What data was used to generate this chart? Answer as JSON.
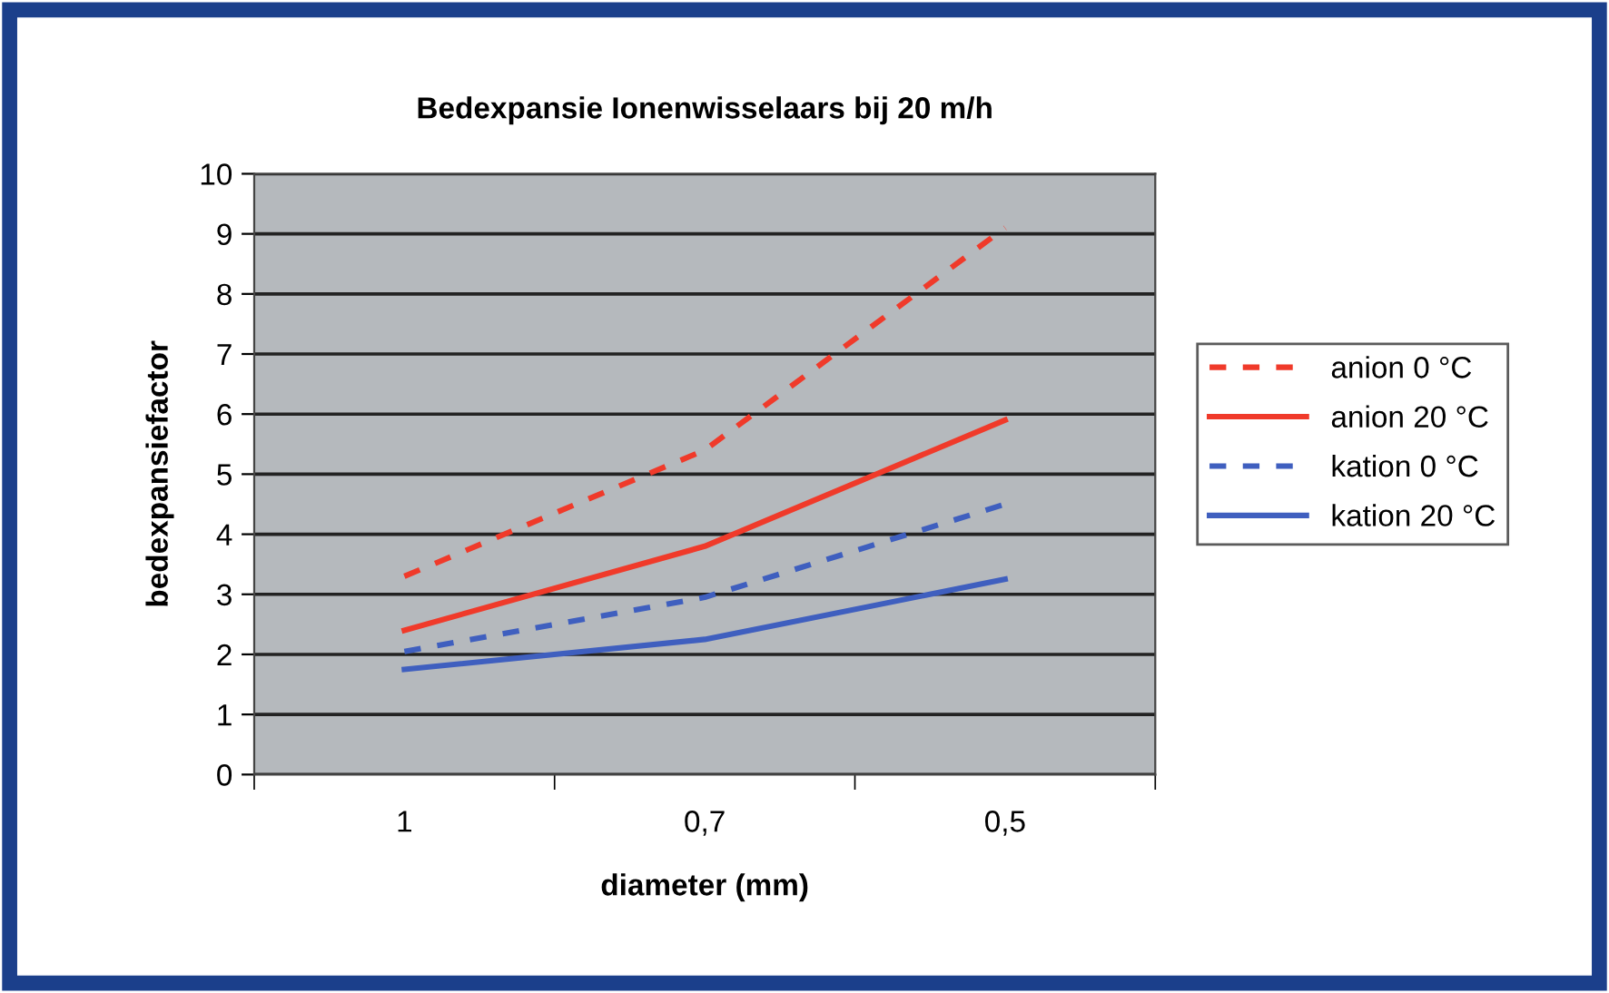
{
  "chart_data": {
    "type": "line",
    "title": "Bedexpansie Ionenwisselaars bij 20 m/h",
    "xlabel": "diameter (mm)",
    "ylabel": "bedexpansiefactor",
    "categories": [
      "1",
      "0,7",
      "0,5"
    ],
    "series": [
      {
        "name": "anion 0 °C",
        "color": "#f03a2a",
        "line_style": "dashed",
        "values": [
          3.3,
          5.4,
          9.1
        ]
      },
      {
        "name": "anion 20 °C",
        "color": "#f03a2a",
        "line_style": "solid",
        "values": [
          2.4,
          3.8,
          5.9
        ]
      },
      {
        "name": "kation 0 °C",
        "color": "#3f5fbf",
        "line_style": "dashed",
        "values": [
          2.05,
          2.95,
          4.5
        ]
      },
      {
        "name": "kation 20 °C",
        "color": "#3f5fbf",
        "line_style": "solid",
        "values": [
          1.75,
          2.25,
          3.25
        ]
      }
    ],
    "ylim": [
      0,
      10
    ],
    "yticks": [
      0,
      1,
      2,
      3,
      4,
      5,
      6,
      7,
      8,
      9,
      10
    ],
    "grid": "y",
    "legend": "right",
    "marker": "none"
  }
}
